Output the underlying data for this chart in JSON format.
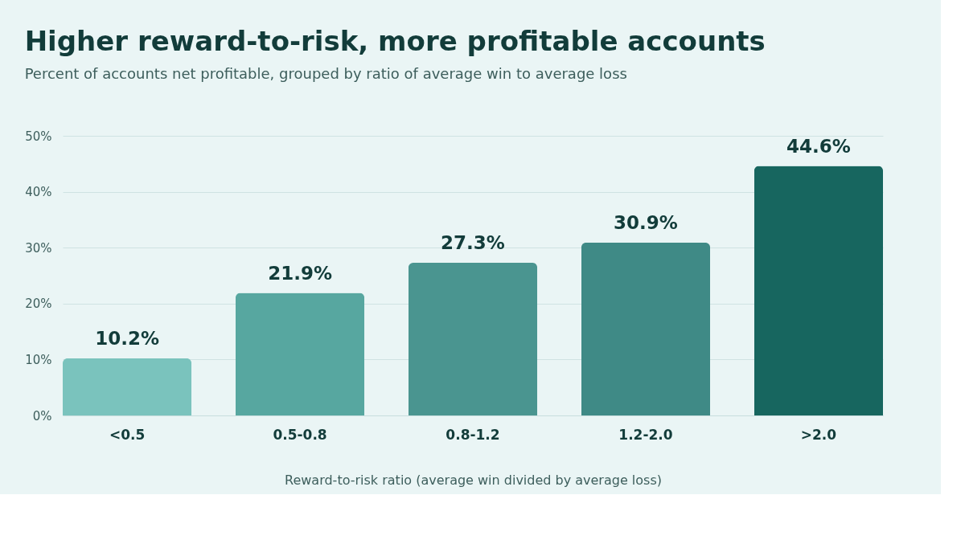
{
  "chart_data": {
    "type": "bar",
    "title": "Higher reward-to-risk, more profitable accounts",
    "subtitle": "Percent of accounts net profitable, grouped by ratio of average win to average loss",
    "xlabel": "Reward-to-risk ratio (average win divided by average loss)",
    "categories": [
      "<0.5",
      "0.5-0.8",
      "0.8-1.2",
      "1.2-2.0",
      ">2.0"
    ],
    "values": [
      10.2,
      21.9,
      27.3,
      30.9,
      44.6
    ],
    "colors": [
      "#7ac3bd",
      "#57a7a0",
      "#4a9590",
      "#3f8a86",
      "#17665f"
    ],
    "value_labels": [
      "10.2%",
      "21.9%",
      "27.3%",
      "30.9%",
      "44.6%"
    ],
    "ylim": [
      0,
      50
    ],
    "yticks": [
      {
        "value": 0,
        "label": "0%"
      },
      {
        "value": 10,
        "label": "10%"
      },
      {
        "value": 20,
        "label": "20%"
      },
      {
        "value": 30,
        "label": "30%"
      },
      {
        "value": 40,
        "label": "40%"
      },
      {
        "value": 50,
        "label": "50%"
      }
    ],
    "grid": "y"
  }
}
